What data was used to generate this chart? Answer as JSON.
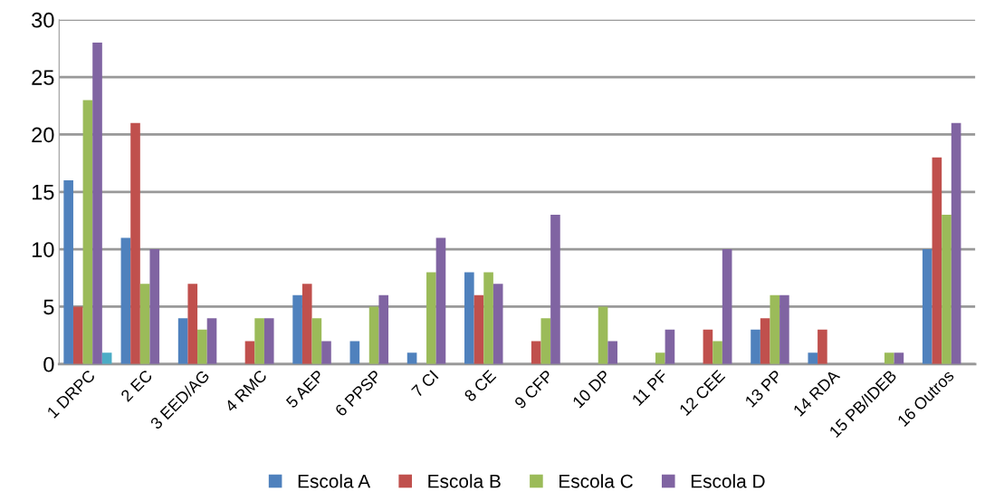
{
  "chart_data": {
    "type": "bar",
    "categories": [
      "1 DRPC",
      "2 EC",
      "3 EED/AG",
      "4 RMC",
      "5 AEP",
      "6 PPSP",
      "7 CI",
      "8 CE",
      "9 CFP",
      "10 DP",
      "11 PF",
      "12 CEE",
      "13 PP",
      "14 RDA",
      "15 PB/IDEB",
      "16 Outros"
    ],
    "series": [
      {
        "name": "Escola A",
        "color": "#4f81bd",
        "values": [
          16,
          11,
          4,
          0,
          6,
          2,
          1,
          8,
          0,
          0,
          0,
          0,
          3,
          1,
          0,
          10
        ]
      },
      {
        "name": "Escola B",
        "color": "#c0504d",
        "values": [
          5,
          21,
          7,
          2,
          7,
          0,
          0,
          6,
          2,
          0,
          0,
          3,
          4,
          3,
          0,
          18
        ]
      },
      {
        "name": "Escola C",
        "color": "#9bbb59",
        "values": [
          23,
          7,
          3,
          4,
          4,
          5,
          8,
          8,
          4,
          5,
          1,
          2,
          6,
          0,
          1,
          13
        ]
      },
      {
        "name": "Escola D",
        "color": "#8064a2",
        "values": [
          28,
          10,
          4,
          4,
          2,
          6,
          11,
          7,
          13,
          2,
          3,
          10,
          6,
          0,
          1,
          21
        ]
      },
      {
        "color": "#4bacc6",
        "values": [
          1,
          null,
          null,
          null,
          null,
          null,
          null,
          null,
          null,
          null,
          null,
          null,
          null,
          null,
          null,
          null
        ]
      }
    ],
    "ylim": [
      0,
      30
    ],
    "yticks": [
      0,
      5,
      10,
      15,
      20,
      25,
      30
    ],
    "grid": "y",
    "legend": "bottom"
  }
}
